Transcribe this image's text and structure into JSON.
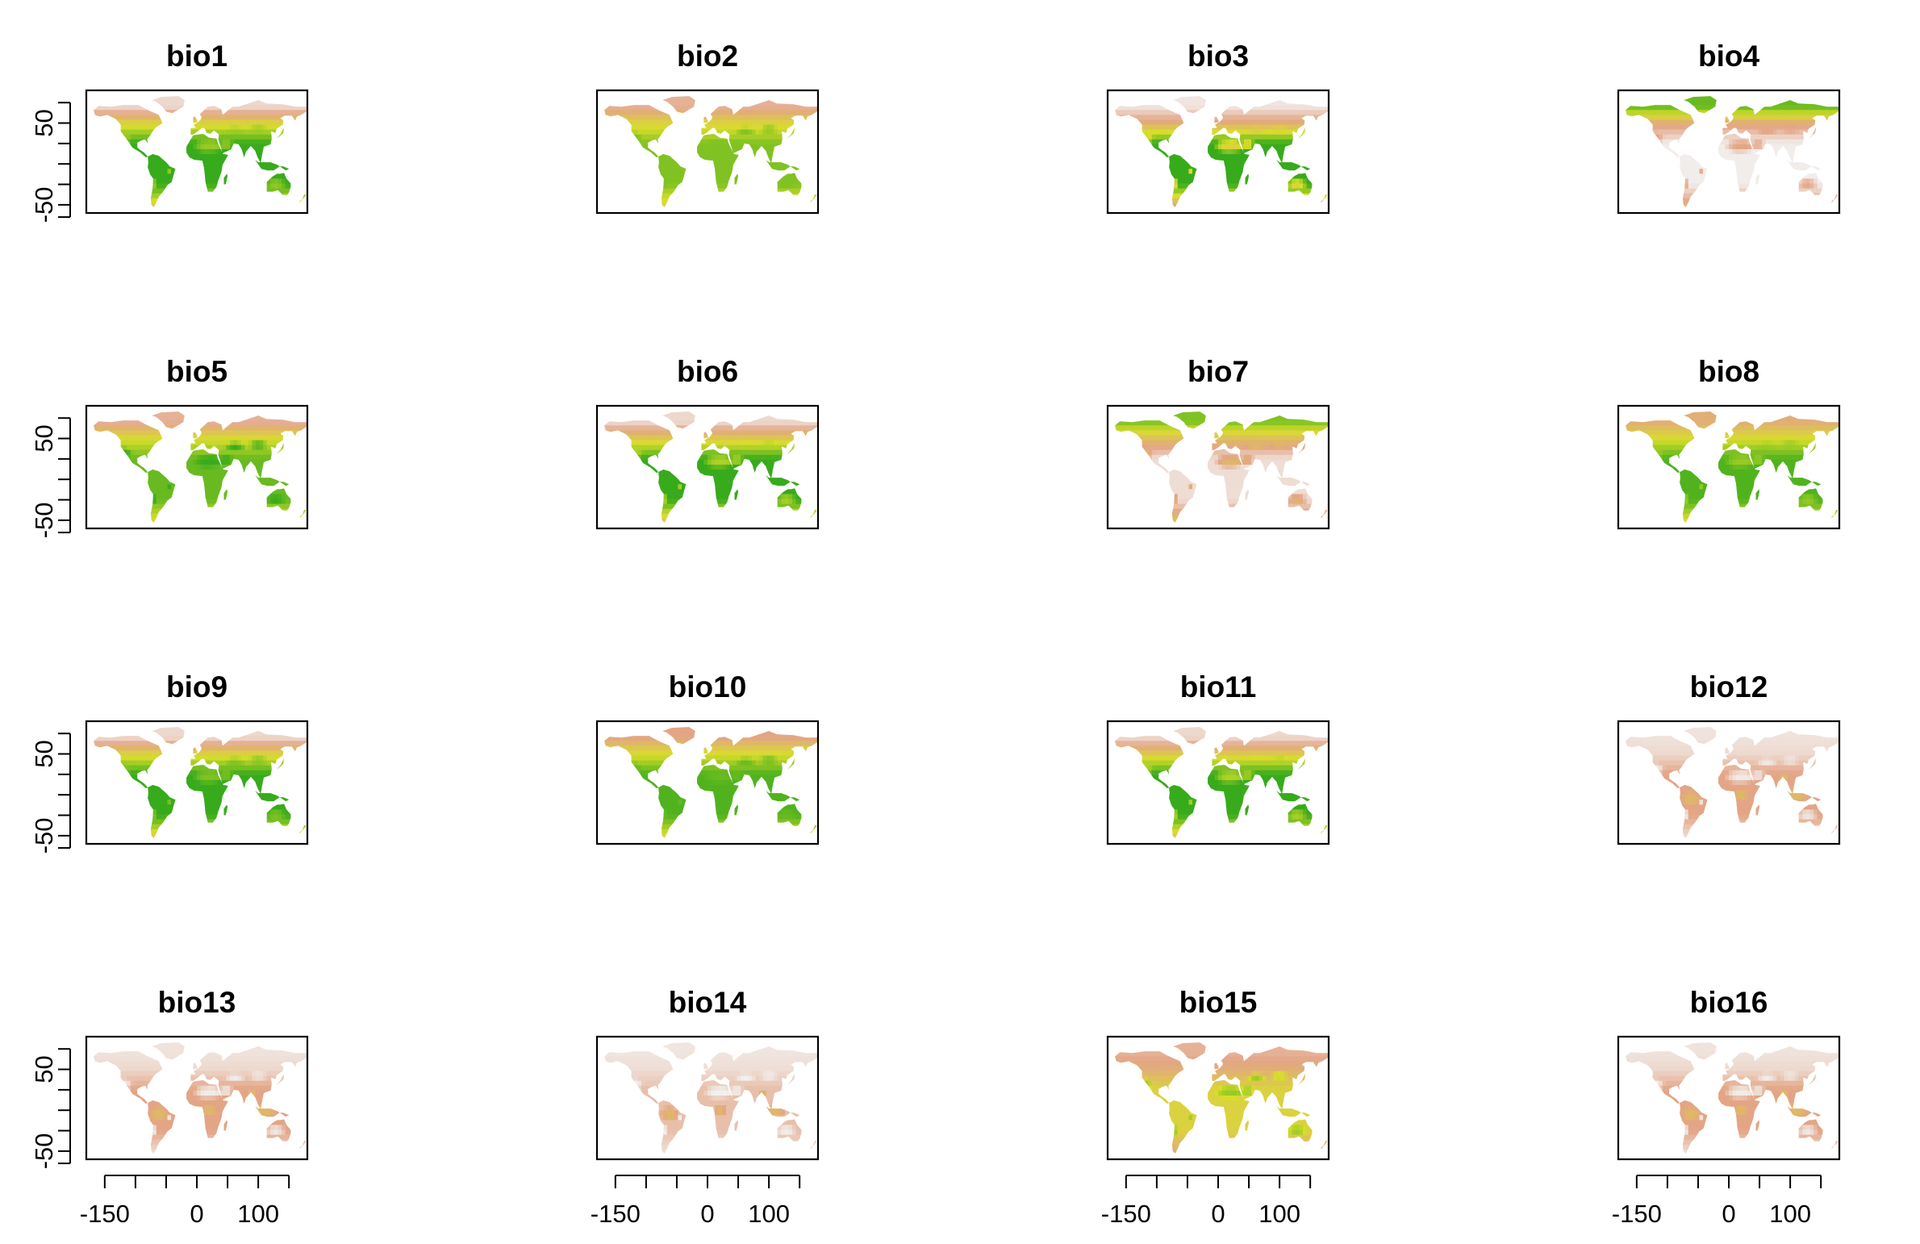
{
  "figure": {
    "panel_grid": {
      "rows": 4,
      "cols": 4
    },
    "colors": {
      "high": "#1fa31a",
      "mid": "#d8de2a",
      "low": "#e3a585",
      "lowest": "#f2f2f2",
      "frame": "#000000"
    }
  },
  "chart_data": [
    {
      "type": "heatmap",
      "title": "bio1",
      "xlim": [
        -180,
        180
      ],
      "ylim": [
        -60,
        90
      ],
      "yticks": [
        -50,
        0,
        50
      ],
      "ytick_labels": [
        "-50",
        "",
        "50"
      ],
      "xticks": [],
      "xtick_labels": [],
      "pattern": {
        "trop": 0.95,
        "mid": 0.55,
        "high": 0.1,
        "arid": 0.75,
        "mode": "lat"
      }
    },
    {
      "type": "heatmap",
      "title": "bio2",
      "xlim": [
        -180,
        180
      ],
      "ylim": [
        -60,
        90
      ],
      "yticks": [],
      "ytick_labels": [],
      "xticks": [],
      "xtick_labels": [],
      "pattern": {
        "trop": 0.8,
        "mid": 0.55,
        "high": 0.25,
        "arid": 0.8,
        "mode": "lat"
      }
    },
    {
      "type": "heatmap",
      "title": "bio3",
      "xlim": [
        -180,
        180
      ],
      "ylim": [
        -60,
        90
      ],
      "yticks": [],
      "ytick_labels": [],
      "xticks": [],
      "xtick_labels": [],
      "pattern": {
        "trop": 0.95,
        "mid": 0.35,
        "high": 0.05,
        "arid": 0.55,
        "mode": "lat"
      }
    },
    {
      "type": "heatmap",
      "title": "bio4",
      "xlim": [
        -180,
        180
      ],
      "ylim": [
        -60,
        90
      ],
      "yticks": [],
      "ytick_labels": [],
      "xticks": [],
      "xtick_labels": [],
      "pattern": {
        "trop": 0.02,
        "mid": 0.35,
        "high": 0.85,
        "arid": 0.3,
        "mode": "lat"
      }
    },
    {
      "type": "heatmap",
      "title": "bio5",
      "xlim": [
        -180,
        180
      ],
      "ylim": [
        -60,
        90
      ],
      "yticks": [
        -50,
        0,
        50
      ],
      "ytick_labels": [
        "-50",
        "",
        "50"
      ],
      "xticks": [],
      "xtick_labels": [],
      "pattern": {
        "trop": 0.85,
        "mid": 0.6,
        "high": 0.25,
        "arid": 0.95,
        "mode": "lat"
      }
    },
    {
      "type": "heatmap",
      "title": "bio6",
      "xlim": [
        -180,
        180
      ],
      "ylim": [
        -60,
        90
      ],
      "yticks": [],
      "ytick_labels": [],
      "xticks": [],
      "xtick_labels": [],
      "pattern": {
        "trop": 0.95,
        "mid": 0.5,
        "high": 0.1,
        "arid": 0.7,
        "mode": "lat"
      }
    },
    {
      "type": "heatmap",
      "title": "bio7",
      "xlim": [
        -180,
        180
      ],
      "ylim": [
        -60,
        90
      ],
      "yticks": [],
      "ytick_labels": [],
      "xticks": [],
      "xtick_labels": [],
      "pattern": {
        "trop": 0.08,
        "mid": 0.45,
        "high": 0.8,
        "arid": 0.4,
        "mode": "lat"
      }
    },
    {
      "type": "heatmap",
      "title": "bio8",
      "xlim": [
        -180,
        180
      ],
      "ylim": [
        -60,
        90
      ],
      "yticks": [],
      "ytick_labels": [],
      "xticks": [],
      "xtick_labels": [],
      "pattern": {
        "trop": 0.9,
        "mid": 0.6,
        "high": 0.35,
        "arid": 0.75,
        "mode": "lat"
      }
    },
    {
      "type": "heatmap",
      "title": "bio9",
      "xlim": [
        -180,
        180
      ],
      "ylim": [
        -60,
        90
      ],
      "yticks": [
        -50,
        0,
        50
      ],
      "ytick_labels": [
        "-50",
        "",
        "50"
      ],
      "xticks": [],
      "xtick_labels": [],
      "pattern": {
        "trop": 0.95,
        "mid": 0.55,
        "high": 0.1,
        "arid": 0.8,
        "mode": "lat"
      }
    },
    {
      "type": "heatmap",
      "title": "bio10",
      "xlim": [
        -180,
        180
      ],
      "ylim": [
        -60,
        90
      ],
      "yticks": [],
      "ytick_labels": [],
      "xticks": [],
      "xtick_labels": [],
      "pattern": {
        "trop": 0.9,
        "mid": 0.6,
        "high": 0.3,
        "arid": 0.85,
        "mode": "lat"
      }
    },
    {
      "type": "heatmap",
      "title": "bio11",
      "xlim": [
        -180,
        180
      ],
      "ylim": [
        -60,
        90
      ],
      "yticks": [],
      "ytick_labels": [],
      "xticks": [],
      "xtick_labels": [],
      "pattern": {
        "trop": 0.95,
        "mid": 0.5,
        "high": 0.1,
        "arid": 0.7,
        "mode": "lat"
      }
    },
    {
      "type": "heatmap",
      "title": "bio12",
      "xlim": [
        -180,
        180
      ],
      "ylim": [
        -60,
        90
      ],
      "yticks": [],
      "ytick_labels": [],
      "xticks": [],
      "xtick_labels": [],
      "pattern": {
        "trop": 0.3,
        "mid": 0.1,
        "high": 0.06,
        "arid": 0.03,
        "mode": "wet"
      }
    },
    {
      "type": "heatmap",
      "title": "bio13",
      "xlim": [
        -180,
        180
      ],
      "ylim": [
        -60,
        90
      ],
      "yticks": [
        -50,
        0,
        50
      ],
      "ytick_labels": [
        "-50",
        "",
        "50"
      ],
      "xticks": [
        -150,
        -100,
        -50,
        0,
        50,
        100,
        150
      ],
      "xtick_labels": [
        "-150",
        "",
        "",
        "0",
        "",
        "100",
        ""
      ],
      "pattern": {
        "trop": 0.3,
        "mid": 0.1,
        "high": 0.06,
        "arid": 0.02,
        "mode": "wet"
      }
    },
    {
      "type": "heatmap",
      "title": "bio14",
      "xlim": [
        -180,
        180
      ],
      "ylim": [
        -60,
        90
      ],
      "yticks": [],
      "ytick_labels": [],
      "xticks": [
        -150,
        -100,
        -50,
        0,
        50,
        100,
        150
      ],
      "xtick_labels": [
        "-150",
        "",
        "",
        "0",
        "",
        "100",
        ""
      ],
      "pattern": {
        "trop": 0.2,
        "mid": 0.08,
        "high": 0.05,
        "arid": 0.0,
        "mode": "wet"
      }
    },
    {
      "type": "heatmap",
      "title": "bio15",
      "xlim": [
        -180,
        180
      ],
      "ylim": [
        -60,
        90
      ],
      "yticks": [],
      "ytick_labels": [],
      "xticks": [
        -150,
        -100,
        -50,
        0,
        50,
        100,
        150
      ],
      "xtick_labels": [
        "-150",
        "",
        "",
        "0",
        "",
        "100",
        ""
      ],
      "pattern": {
        "trop": 0.55,
        "mid": 0.35,
        "high": 0.25,
        "arid": 0.75,
        "mode": "lat"
      }
    },
    {
      "type": "heatmap",
      "title": "bio16",
      "xlim": [
        -180,
        180
      ],
      "ylim": [
        -60,
        90
      ],
      "yticks": [],
      "ytick_labels": [],
      "xticks": [
        -150,
        -100,
        -50,
        0,
        50,
        100,
        150
      ],
      "xtick_labels": [
        "-150",
        "",
        "",
        "0",
        "",
        "100",
        ""
      ],
      "pattern": {
        "trop": 0.3,
        "mid": 0.1,
        "high": 0.06,
        "arid": 0.02,
        "mode": "wet"
      }
    }
  ]
}
